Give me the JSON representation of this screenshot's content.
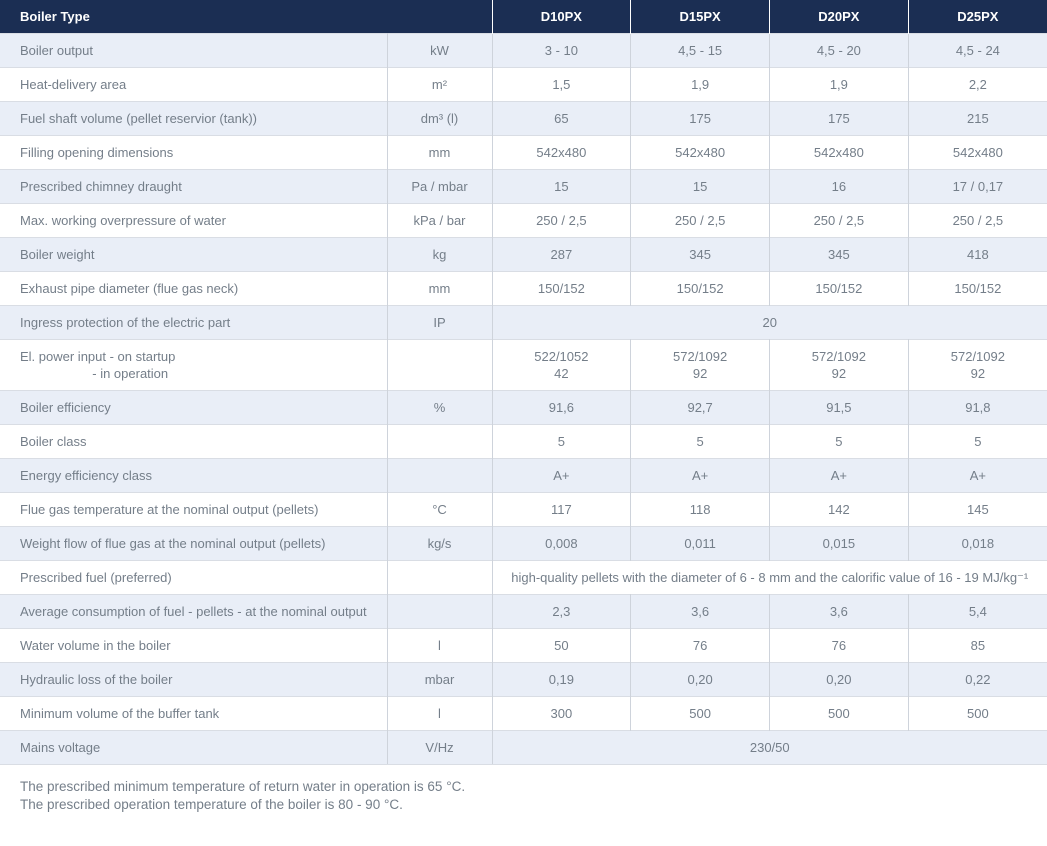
{
  "table": {
    "header": {
      "label": "Boiler Type",
      "columns": [
        "D10PX",
        "D15PX",
        "D20PX",
        "D25PX"
      ]
    },
    "rows": [
      {
        "label": "Boiler output",
        "unit": "kW",
        "values": [
          "3 - 10",
          "4,5 - 15",
          "4,5 - 20",
          "4,5 - 24"
        ]
      },
      {
        "label": "Heat-delivery area",
        "unit": "m²",
        "values": [
          "1,5",
          "1,9",
          "1,9",
          "2,2"
        ]
      },
      {
        "label": "Fuel shaft volume (pellet reservior (tank))",
        "unit": "dm³ (l)",
        "values": [
          "65",
          "175",
          "175",
          "215"
        ]
      },
      {
        "label": "Filling opening dimensions",
        "unit": "mm",
        "values": [
          "542x480",
          "542x480",
          "542x480",
          "542x480"
        ]
      },
      {
        "label": "Prescribed chimney draught",
        "unit": "Pa / mbar",
        "values": [
          "15",
          "15",
          "16",
          "17 / 0,17"
        ]
      },
      {
        "label": "Max. working overpressure of water",
        "unit": "kPa / bar",
        "values": [
          "250 / 2,5",
          "250 / 2,5",
          "250 / 2,5",
          "250 / 2,5"
        ]
      },
      {
        "label": "Boiler weight",
        "unit": "kg",
        "values": [
          "287",
          "345",
          "345",
          "418"
        ]
      },
      {
        "label": "Exhaust pipe diameter (flue gas neck)",
        "unit": "mm",
        "values": [
          "150/152",
          "150/152",
          "150/152",
          "150/152"
        ]
      },
      {
        "label": "Ingress protection of the electric part",
        "unit": "IP",
        "span": "20"
      },
      {
        "label": "El. power input - on startup\n                    - in operation",
        "unit": "",
        "values": [
          "522/1052\n42",
          "572/1092\n92",
          "572/1092\n92",
          "572/1092\n92"
        ]
      },
      {
        "label": "Boiler efficiency",
        "unit": "%",
        "values": [
          "91,6",
          "92,7",
          "91,5",
          "91,8"
        ]
      },
      {
        "label": "Boiler class",
        "unit": "",
        "values": [
          "5",
          "5",
          "5",
          "5"
        ]
      },
      {
        "label": "Energy efficiency class",
        "unit": "",
        "values": [
          "A+",
          "A+",
          "A+",
          "A+"
        ]
      },
      {
        "label": "Flue gas temperature at the nominal output (pellets)",
        "unit": "°C",
        "values": [
          "117",
          "118",
          "142",
          "145"
        ]
      },
      {
        "label": "Weight flow of flue gas at the nominal output (pellets)",
        "unit": "kg/s",
        "values": [
          "0,008",
          "0,011",
          "0,015",
          "0,018"
        ]
      },
      {
        "label": "Prescribed fuel (preferred)",
        "unit": "",
        "span": "high-quality pellets with the diameter of 6 - 8 mm and the calorific value of 16 - 19 MJ/kg⁻¹"
      },
      {
        "label": "Average consumption of fuel - pellets - at the nominal output",
        "unit": "",
        "values": [
          "2,3",
          "3,6",
          "3,6",
          "5,4"
        ]
      },
      {
        "label": "Water volume in the boiler",
        "unit": "l",
        "values": [
          "50",
          "76",
          "76",
          "85"
        ]
      },
      {
        "label": "Hydraulic loss of the boiler",
        "unit": "mbar",
        "values": [
          "0,19",
          "0,20",
          "0,20",
          "0,22"
        ]
      },
      {
        "label": "Minimum volume of the buffer tank",
        "unit": "l",
        "values": [
          "300",
          "500",
          "500",
          "500"
        ]
      },
      {
        "label": "Mains voltage",
        "unit": "V/Hz",
        "span": "230/50"
      }
    ],
    "notes": [
      "The prescribed minimum temperature of return water in operation is 65 °C.",
      "The prescribed operation temperature of the boiler is 80 - 90 °C."
    ]
  },
  "colors": {
    "header_bg": "#1b2e53",
    "row_light_bg": "#e9eef7",
    "row_white_bg": "#ffffff",
    "cell_text": "#747e89",
    "grid_line": "#ced3db"
  }
}
